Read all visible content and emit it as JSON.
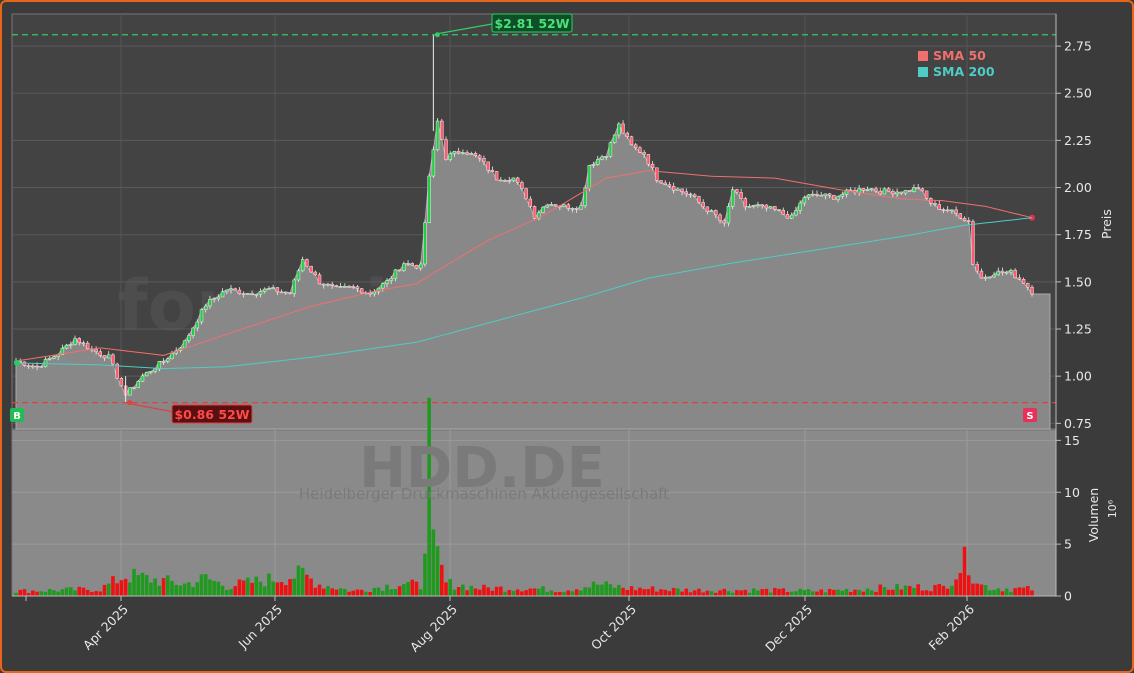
{
  "chart_data": {
    "type": "candlestick",
    "ticker": "HDD.DE",
    "company": "Heidelberger Druckmaschinen Aktiengesellschaft",
    "watermark": "forexsignale.trade",
    "price_axis": {
      "label": "Preis",
      "ylim": [
        0.72,
        2.92
      ],
      "ticks": [
        "0.75",
        "1.00",
        "1.25",
        "1.50",
        "1.75",
        "2.00",
        "2.25",
        "2.50",
        "2.75"
      ]
    },
    "volume_axis": {
      "label": "Volumen",
      "unit_label": "10⁶",
      "ylim": [
        0,
        16
      ],
      "ticks": [
        "0",
        "5",
        "10",
        "15"
      ]
    },
    "x_ticks": [
      "Apr 2025",
      "Jun 2025",
      "Aug 2025",
      "Oct 2025",
      "Dec 2025",
      "Feb 2026"
    ],
    "legend": [
      {
        "label": "SMA 50",
        "color": "#f07070"
      },
      {
        "label": "SMA 200",
        "color": "#4ecdc4"
      }
    ],
    "high_52w": {
      "value": 2.81,
      "label": "$2.81 52W",
      "date_index": 99
    },
    "low_52w": {
      "value": 0.86,
      "label": "$0.86 52W",
      "date_index": 26
    },
    "markers": {
      "buy": "B",
      "sell": "S"
    },
    "close_anchors": [
      [
        0,
        1.08
      ],
      [
        5,
        1.05
      ],
      [
        10,
        1.12
      ],
      [
        14,
        1.2
      ],
      [
        18,
        1.14
      ],
      [
        22,
        1.1
      ],
      [
        26,
        0.9
      ],
      [
        30,
        1.0
      ],
      [
        35,
        1.08
      ],
      [
        40,
        1.18
      ],
      [
        45,
        1.38
      ],
      [
        50,
        1.46
      ],
      [
        55,
        1.44
      ],
      [
        60,
        1.46
      ],
      [
        65,
        1.44
      ],
      [
        68,
        1.62
      ],
      [
        72,
        1.5
      ],
      [
        76,
        1.46
      ],
      [
        80,
        1.47
      ],
      [
        84,
        1.44
      ],
      [
        88,
        1.5
      ],
      [
        92,
        1.6
      ],
      [
        96,
        1.58
      ],
      [
        98,
        2.05
      ],
      [
        100,
        2.35
      ],
      [
        102,
        2.16
      ],
      [
        106,
        2.2
      ],
      [
        110,
        2.15
      ],
      [
        114,
        2.05
      ],
      [
        118,
        2.05
      ],
      [
        121,
        1.95
      ],
      [
        123,
        1.85
      ],
      [
        126,
        1.92
      ],
      [
        130,
        1.9
      ],
      [
        134,
        1.9
      ],
      [
        136,
        2.12
      ],
      [
        140,
        2.18
      ],
      [
        143,
        2.33
      ],
      [
        146,
        2.22
      ],
      [
        149,
        2.18
      ],
      [
        152,
        2.05
      ],
      [
        156,
        2.0
      ],
      [
        160,
        1.96
      ],
      [
        163,
        1.9
      ],
      [
        166,
        1.85
      ],
      [
        168,
        1.8
      ],
      [
        170,
        1.99
      ],
      [
        173,
        1.9
      ],
      [
        176,
        1.9
      ],
      [
        180,
        1.88
      ],
      [
        184,
        1.84
      ],
      [
        187,
        1.95
      ],
      [
        190,
        1.96
      ],
      [
        194,
        1.95
      ],
      [
        198,
        1.98
      ],
      [
        202,
        2.0
      ],
      [
        205,
        1.98
      ],
      [
        208,
        1.98
      ],
      [
        211,
        1.98
      ],
      [
        214,
        2.0
      ],
      [
        216,
        1.94
      ],
      [
        218,
        1.9
      ],
      [
        221,
        1.88
      ],
      [
        224,
        1.85
      ],
      [
        226,
        1.82
      ],
      [
        227,
        1.6
      ],
      [
        229,
        1.52
      ],
      [
        232,
        1.55
      ],
      [
        236,
        1.55
      ],
      [
        239,
        1.5
      ],
      [
        241,
        1.45
      ]
    ],
    "volume_anchors": [
      [
        0,
        0.5
      ],
      [
        20,
        0.7
      ],
      [
        26,
        2.1
      ],
      [
        40,
        1.2
      ],
      [
        45,
        1.8
      ],
      [
        50,
        1.0
      ],
      [
        68,
        2.2
      ],
      [
        72,
        1.2
      ],
      [
        80,
        0.5
      ],
      [
        92,
        1.3
      ],
      [
        96,
        1.0
      ],
      [
        98,
        15.2
      ],
      [
        99,
        4.6
      ],
      [
        100,
        3.8
      ],
      [
        102,
        1.3
      ],
      [
        110,
        0.8
      ],
      [
        120,
        0.8
      ],
      [
        130,
        0.6
      ],
      [
        138,
        1.2
      ],
      [
        145,
        0.8
      ],
      [
        160,
        0.6
      ],
      [
        175,
        0.6
      ],
      [
        190,
        0.5
      ],
      [
        205,
        0.8
      ],
      [
        212,
        0.9
      ],
      [
        220,
        0.9
      ],
      [
        226,
        3.9
      ],
      [
        227,
        2.3
      ],
      [
        229,
        1.1
      ],
      [
        232,
        0.8
      ],
      [
        241,
        0.7
      ]
    ],
    "sma50_anchors": [
      [
        0,
        1.08
      ],
      [
        20,
        1.15
      ],
      [
        35,
        1.11
      ],
      [
        55,
        1.26
      ],
      [
        70,
        1.37
      ],
      [
        85,
        1.45
      ],
      [
        95,
        1.49
      ],
      [
        100,
        1.56
      ],
      [
        112,
        1.72
      ],
      [
        125,
        1.85
      ],
      [
        140,
        2.05
      ],
      [
        150,
        2.09
      ],
      [
        165,
        2.06
      ],
      [
        180,
        2.05
      ],
      [
        195,
        1.99
      ],
      [
        210,
        1.94
      ],
      [
        220,
        1.93
      ],
      [
        230,
        1.9
      ],
      [
        241,
        1.84
      ]
    ],
    "sma200_anchors": [
      [
        0,
        1.07
      ],
      [
        20,
        1.06
      ],
      [
        35,
        1.04
      ],
      [
        50,
        1.05
      ],
      [
        70,
        1.1
      ],
      [
        95,
        1.18
      ],
      [
        115,
        1.3
      ],
      [
        135,
        1.42
      ],
      [
        150,
        1.52
      ],
      [
        170,
        1.6
      ],
      [
        190,
        1.67
      ],
      [
        210,
        1.74
      ],
      [
        225,
        1.8
      ],
      [
        241,
        1.84
      ]
    ]
  }
}
